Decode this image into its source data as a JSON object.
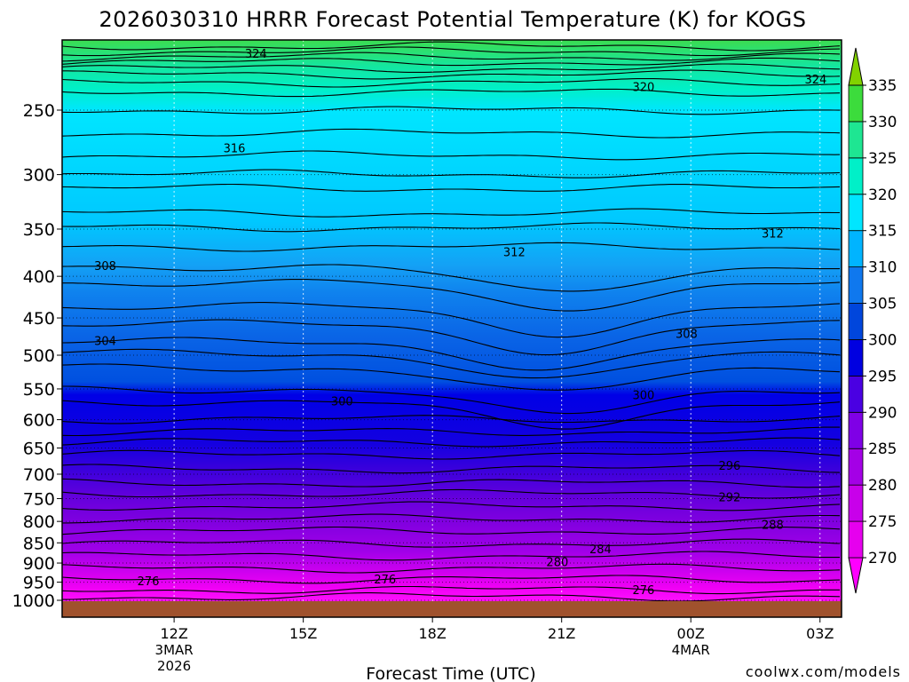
{
  "chart_data": {
    "type": "heatmap",
    "title": "2026030310 HRRR Forecast Potential Temperature (K) for KOGS",
    "xlabel": "Forecast Time (UTC)",
    "ylabel": "",
    "y_ticks": [
      "250",
      "300",
      "350",
      "400",
      "450",
      "500",
      "550",
      "600",
      "650",
      "700",
      "750",
      "800",
      "850",
      "900",
      "950",
      "1000"
    ],
    "y_scale": "log-pressure",
    "y_range": [
      200,
      1040
    ],
    "x_range_hours": [
      9.4,
      27.5
    ],
    "x_ticks": [
      {
        "label": "12Z",
        "sub": [
          "3MAR",
          "2026"
        ],
        "hour": 12
      },
      {
        "label": "15Z",
        "sub": [],
        "hour": 15
      },
      {
        "label": "18Z",
        "sub": [],
        "hour": 18
      },
      {
        "label": "21Z",
        "sub": [],
        "hour": 21
      },
      {
        "label": "00Z",
        "sub": [
          "4MAR"
        ],
        "hour": 24
      },
      {
        "label": "03Z",
        "sub": [],
        "hour": 27
      }
    ],
    "colorbar": {
      "levels": [
        270,
        275,
        280,
        285,
        290,
        295,
        300,
        305,
        310,
        315,
        320,
        325,
        330,
        335
      ],
      "colors": [
        "#ff00ff",
        "#e600ee",
        "#c800ea",
        "#a400e6",
        "#7f00e6",
        "#4a00e2",
        "#0000e0",
        "#0046dc",
        "#0f78ee",
        "#00b4ff",
        "#00e6ff",
        "#00f0c8",
        "#1ee692",
        "#3cdc3c",
        "#82d200"
      ]
    },
    "contour_labels": [
      {
        "value": "324",
        "hour": 13.9,
        "p": 213
      },
      {
        "value": "324",
        "hour": 26.9,
        "p": 229
      },
      {
        "value": "320",
        "hour": 22.9,
        "p": 234
      },
      {
        "value": "316",
        "hour": 13.4,
        "p": 278
      },
      {
        "value": "312",
        "hour": 19.9,
        "p": 373
      },
      {
        "value": "312",
        "hour": 25.9,
        "p": 354
      },
      {
        "value": "308",
        "hour": 10.4,
        "p": 388
      },
      {
        "value": "308",
        "hour": 23.9,
        "p": 470
      },
      {
        "value": "304",
        "hour": 10.4,
        "p": 480
      },
      {
        "value": "300",
        "hour": 15.9,
        "p": 569
      },
      {
        "value": "300",
        "hour": 22.9,
        "p": 559
      },
      {
        "value": "296",
        "hour": 24.9,
        "p": 683
      },
      {
        "value": "292",
        "hour": 24.9,
        "p": 746
      },
      {
        "value": "288",
        "hour": 25.9,
        "p": 807
      },
      {
        "value": "284",
        "hour": 21.9,
        "p": 864
      },
      {
        "value": "280",
        "hour": 20.9,
        "p": 896
      },
      {
        "value": "276",
        "hour": 11.4,
        "p": 946
      },
      {
        "value": "276",
        "hour": 16.9,
        "p": 942
      },
      {
        "value": "276",
        "hour": 22.9,
        "p": 970
      }
    ],
    "grid": true,
    "legend": "right colorbar"
  },
  "watermark": "coolwx.com/models",
  "colors": {
    "ground": "#a0522d",
    "watermark": "#ff4040"
  }
}
